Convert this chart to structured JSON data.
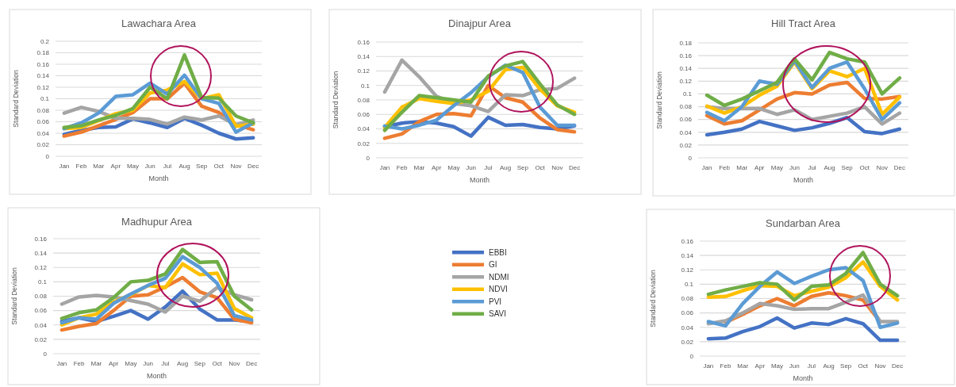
{
  "chart_data": [
    {
      "type": "line",
      "title": "Lawachara Area",
      "xlabel": "Month",
      "ylabel": "Standard Deviation",
      "categories": [
        "Jan",
        "Feb",
        "Mar",
        "Apr",
        "May",
        "Jun",
        "Jul",
        "Aug",
        "Sep",
        "Oct",
        "Nov",
        "Dec"
      ],
      "ylim": [
        0,
        0.2
      ],
      "yticks": [
        0,
        0.02,
        0.04,
        0.06,
        0.08,
        0.1,
        0.12,
        0.14,
        0.16,
        0.18,
        0.2
      ],
      "grid": "y",
      "legend": false,
      "series": [
        {
          "color": "#4472c4",
          "values": [
            0.038,
            0.045,
            0.05,
            0.051,
            0.065,
            0.058,
            0.05,
            0.066,
            0.054,
            0.04,
            0.03,
            0.032
          ]
        },
        {
          "color": "#ed7d31",
          "values": [
            0.035,
            0.042,
            0.053,
            0.064,
            0.076,
            0.1,
            0.1,
            0.127,
            0.087,
            0.076,
            0.055,
            0.046
          ]
        },
        {
          "color": "#a5a5a5",
          "values": [
            0.075,
            0.085,
            0.078,
            0.066,
            0.066,
            0.064,
            0.056,
            0.068,
            0.063,
            0.07,
            0.055,
            0.063
          ]
        },
        {
          "color": "#ffc000",
          "values": [
            0.048,
            0.05,
            0.062,
            0.074,
            0.08,
            0.11,
            0.115,
            0.13,
            0.1,
            0.107,
            0.052,
            0.056
          ]
        },
        {
          "color": "#5b9bd5",
          "values": [
            0.048,
            0.058,
            0.075,
            0.104,
            0.107,
            0.127,
            0.108,
            0.141,
            0.1,
            0.092,
            0.042,
            0.058
          ]
        },
        {
          "color": "#70ad47",
          "values": [
            0.05,
            0.053,
            0.063,
            0.071,
            0.083,
            0.12,
            0.1,
            0.176,
            0.102,
            0.101,
            0.07,
            0.058
          ]
        }
      ]
    },
    {
      "type": "line",
      "title": "Dinajpur Area",
      "xlabel": "Month",
      "ylabel": "Standard Deviation",
      "categories": [
        "Jan",
        "Feb",
        "Mar",
        "Apr",
        "May",
        "Jun",
        "Jul",
        "Aug",
        "Sep",
        "Oct",
        "Nov",
        "Dec"
      ],
      "ylim": [
        0,
        0.16
      ],
      "yticks": [
        0,
        0.02,
        0.04,
        0.06,
        0.08,
        0.1,
        0.12,
        0.14,
        0.16
      ],
      "grid": "y",
      "legend": false,
      "series": [
        {
          "color": "#4472c4",
          "values": [
            0.043,
            0.048,
            0.05,
            0.048,
            0.043,
            0.03,
            0.056,
            0.045,
            0.046,
            0.042,
            0.04,
            0.044
          ]
        },
        {
          "color": "#ed7d31",
          "values": [
            0.027,
            0.033,
            0.05,
            0.06,
            0.061,
            0.058,
            0.1,
            0.083,
            0.077,
            0.055,
            0.039,
            0.036
          ]
        },
        {
          "color": "#a5a5a5",
          "values": [
            0.091,
            0.135,
            0.112,
            0.085,
            0.075,
            0.072,
            0.064,
            0.087,
            0.086,
            0.094,
            0.096,
            0.11
          ]
        },
        {
          "color": "#ffc000",
          "values": [
            0.042,
            0.07,
            0.082,
            0.078,
            0.075,
            0.08,
            0.092,
            0.122,
            0.125,
            0.095,
            0.072,
            0.063
          ]
        },
        {
          "color": "#5b9bd5",
          "values": [
            0.044,
            0.04,
            0.045,
            0.052,
            0.072,
            0.09,
            0.112,
            0.128,
            0.118,
            0.07,
            0.045,
            0.045
          ]
        },
        {
          "color": "#70ad47",
          "values": [
            0.038,
            0.063,
            0.086,
            0.083,
            0.08,
            0.077,
            0.113,
            0.127,
            0.133,
            0.102,
            0.073,
            0.06
          ]
        }
      ]
    },
    {
      "type": "line",
      "title": "Hill Tract Area",
      "xlabel": "Month",
      "ylabel": "Standard Deviation",
      "categories": [
        "Jan",
        "Feb",
        "Mar",
        "Apr",
        "May",
        "Jun",
        "Jul",
        "Aug",
        "Sep",
        "Oct",
        "Nov",
        "Dec"
      ],
      "ylim": [
        0,
        0.18
      ],
      "yticks": [
        0,
        0.02,
        0.04,
        0.06,
        0.08,
        0.1,
        0.12,
        0.14,
        0.16,
        0.18
      ],
      "grid": "y",
      "legend": false,
      "series": [
        {
          "color": "#4472c4",
          "values": [
            0.036,
            0.04,
            0.045,
            0.057,
            0.05,
            0.043,
            0.047,
            0.054,
            0.063,
            0.041,
            0.038,
            0.045
          ]
        },
        {
          "color": "#ed7d31",
          "values": [
            0.066,
            0.053,
            0.058,
            0.075,
            0.092,
            0.102,
            0.1,
            0.114,
            0.118,
            0.093,
            0.092,
            0.096
          ]
        },
        {
          "color": "#a5a5a5",
          "values": [
            0.08,
            0.077,
            0.077,
            0.077,
            0.068,
            0.075,
            0.06,
            0.065,
            0.07,
            0.08,
            0.053,
            0.07
          ]
        },
        {
          "color": "#ffc000",
          "values": [
            0.081,
            0.07,
            0.08,
            0.098,
            0.112,
            0.15,
            0.108,
            0.136,
            0.127,
            0.14,
            0.068,
            0.095
          ]
        },
        {
          "color": "#5b9bd5",
          "values": [
            0.071,
            0.058,
            0.08,
            0.12,
            0.115,
            0.152,
            0.11,
            0.14,
            0.15,
            0.108,
            0.06,
            0.086
          ]
        },
        {
          "color": "#70ad47",
          "values": [
            0.098,
            0.082,
            0.092,
            0.105,
            0.118,
            0.155,
            0.122,
            0.165,
            0.155,
            0.15,
            0.1,
            0.125
          ]
        }
      ]
    },
    {
      "type": "line",
      "title": "Madhupur Area",
      "xlabel": "Month",
      "ylabel": "Standard Deviation",
      "categories": [
        "Jan",
        "Feb",
        "Mar",
        "Apr",
        "May",
        "Jun",
        "Jul",
        "Aug",
        "Sep",
        "Oct",
        "Nov",
        "Dec"
      ],
      "ylim": [
        0,
        0.16
      ],
      "yticks": [
        0,
        0.02,
        0.04,
        0.06,
        0.08,
        0.1,
        0.12,
        0.14,
        0.16
      ],
      "grid": "y",
      "legend": "right",
      "series": [
        {
          "name": "EBBI",
          "color": "#4472c4",
          "values": [
            0.045,
            0.05,
            0.045,
            0.052,
            0.06,
            0.048,
            0.065,
            0.087,
            0.062,
            0.047,
            0.047,
            0.045
          ]
        },
        {
          "name": "GI",
          "color": "#ed7d31",
          "values": [
            0.033,
            0.038,
            0.042,
            0.06,
            0.08,
            0.082,
            0.093,
            0.106,
            0.086,
            0.078,
            0.048,
            0.043
          ]
        },
        {
          "name": "NDMI",
          "color": "#a5a5a5",
          "values": [
            0.069,
            0.079,
            0.081,
            0.079,
            0.074,
            0.069,
            0.058,
            0.08,
            0.073,
            0.092,
            0.082,
            0.075
          ]
        },
        {
          "name": "NDVI",
          "color": "#ffc000",
          "values": [
            0.04,
            0.05,
            0.055,
            0.072,
            0.082,
            0.095,
            0.092,
            0.125,
            0.11,
            0.112,
            0.063,
            0.05
          ]
        },
        {
          "name": "PVI",
          "color": "#5b9bd5",
          "values": [
            0.043,
            0.05,
            0.048,
            0.07,
            0.083,
            0.095,
            0.105,
            0.135,
            0.12,
            0.098,
            0.053,
            0.047
          ]
        },
        {
          "name": "SAVI",
          "color": "#70ad47",
          "values": [
            0.049,
            0.057,
            0.061,
            0.078,
            0.1,
            0.102,
            0.111,
            0.145,
            0.127,
            0.128,
            0.08,
            0.061
          ]
        }
      ]
    },
    {
      "type": "line",
      "title": "Sundarban Area",
      "xlabel": "Month",
      "ylabel": "Standard Deviation",
      "categories": [
        "Jan",
        "Feb",
        "Mar",
        "Apr",
        "May",
        "Jun",
        "Jul",
        "Aug",
        "Sep",
        "Oct",
        "Nov",
        "Dec"
      ],
      "ylim": [
        0,
        0.16
      ],
      "yticks": [
        0,
        0.02,
        0.04,
        0.06,
        0.08,
        0.1,
        0.12,
        0.14,
        0.16
      ],
      "grid": "y",
      "legend": false,
      "series": [
        {
          "color": "#4472c4",
          "values": [
            0.024,
            0.025,
            0.034,
            0.041,
            0.053,
            0.039,
            0.046,
            0.044,
            0.052,
            0.045,
            0.022,
            0.022
          ]
        },
        {
          "color": "#ed7d31",
          "values": [
            null,
            0.047,
            0.058,
            0.07,
            0.08,
            0.07,
            0.083,
            0.088,
            0.084,
            0.078,
            0.048,
            null
          ]
        },
        {
          "color": "#a5a5a5",
          "values": [
            0.045,
            0.049,
            0.06,
            0.073,
            0.07,
            0.065,
            0.066,
            0.066,
            0.075,
            0.085,
            0.048,
            0.048
          ]
        },
        {
          "color": "#ffc000",
          "values": [
            0.082,
            0.083,
            0.091,
            0.098,
            0.097,
            0.084,
            0.09,
            0.096,
            0.109,
            0.131,
            0.097,
            0.078
          ]
        },
        {
          "color": "#5b9bd5",
          "values": [
            0.048,
            0.042,
            0.073,
            0.097,
            0.117,
            0.101,
            0.111,
            0.12,
            0.123,
            0.105,
            0.04,
            0.046
          ]
        },
        {
          "color": "#70ad47",
          "values": [
            0.086,
            0.092,
            0.097,
            0.102,
            0.1,
            0.078,
            0.097,
            0.099,
            0.115,
            0.144,
            0.1,
            0.084
          ]
        }
      ]
    }
  ]
}
